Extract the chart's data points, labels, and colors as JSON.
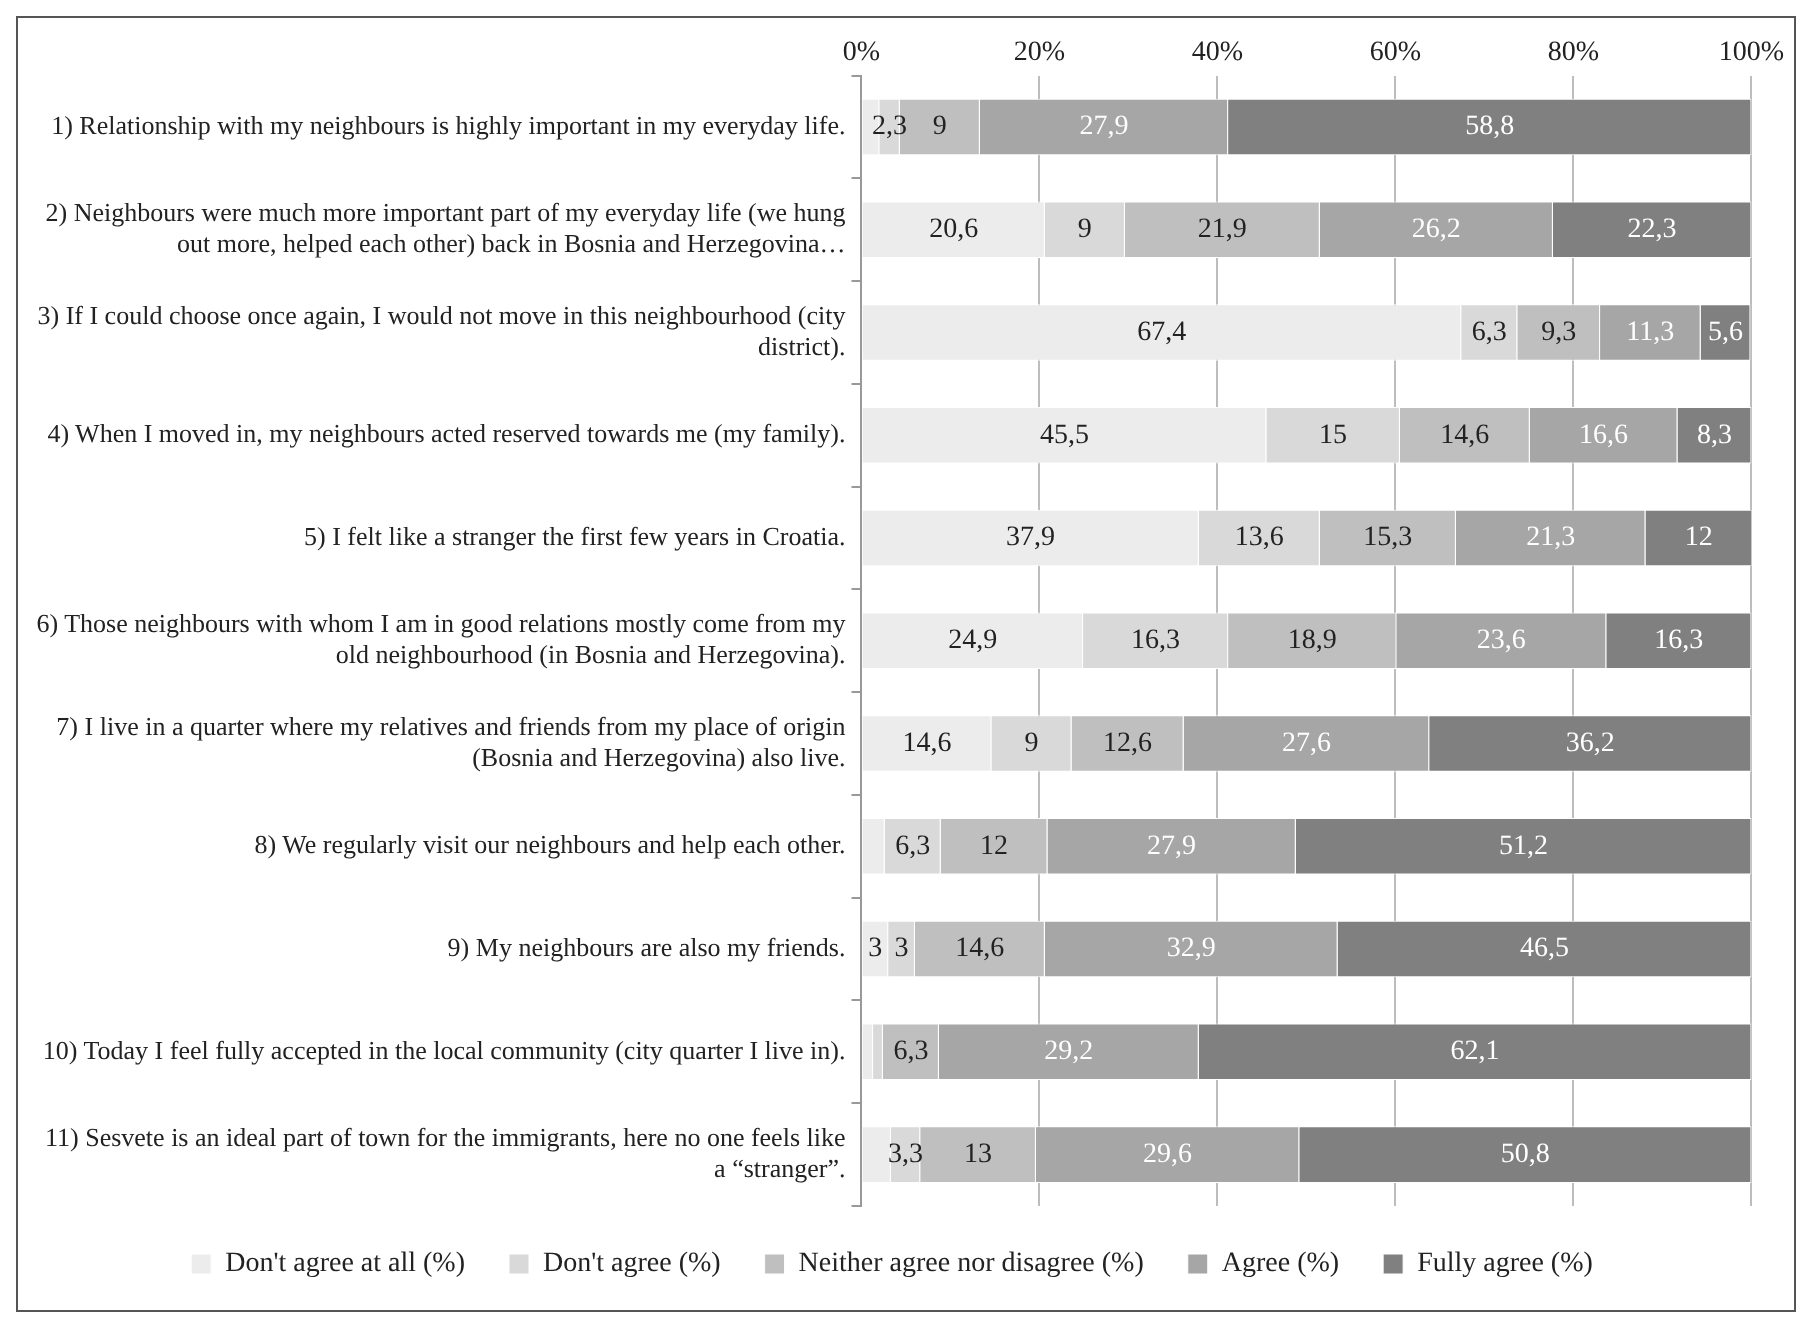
{
  "chart_data": {
    "type": "bar",
    "orientation": "horizontal",
    "stacked": true,
    "categories": [
      "1) Relationship with my neighbours is highly important in my everyday life.",
      "2) Neighbours were much more important part of my everyday life (we hung out more, helped each other) back in Bosnia and Herzegovina…",
      "3) If I could choose once again, I would not move in this neighbourhood (city district).",
      "4) When I moved in, my neighbours acted reserved towards me (my family).",
      "5) I felt like a stranger the first few years in Croatia.",
      "6) Those neighbours with whom I am in good relations mostly come from my old neighbourhood (in Bosnia and Herzegovina).",
      "7) I live in a quarter where my relatives and friends from my place of origin (Bosnia and Herzegovina) also live.",
      "8) We regularly visit our neighbours and help each other.",
      "9) My neighbours are also my friends.",
      "10) Today I feel fully accepted in the local community (city quarter I live in).",
      "11) Sesvete is an ideal part of town for the immigrants, here no one feels like a “stranger”."
    ],
    "series": [
      {
        "name": "Don't agree at all (%)",
        "color": "#ececec",
        "values": [
          2,
          20.6,
          67.4,
          45.5,
          37.9,
          24.9,
          14.6,
          2.6,
          3,
          1.3,
          3.3
        ],
        "value_labels": [
          null,
          "20,6",
          "67,4",
          "45,5",
          "37,9",
          "24,9",
          "14,6",
          null,
          "3",
          null,
          null
        ]
      },
      {
        "name": "Don't agree (%)",
        "color": "#d9d9d9",
        "values": [
          2.3,
          9,
          6.3,
          15,
          13.6,
          16.3,
          9,
          6.3,
          3,
          1.1,
          3.3
        ],
        "value_labels": [
          "2,3",
          "9",
          "6,3",
          "15",
          "13,6",
          "16,3",
          "9",
          "6,3",
          "3",
          null,
          "3,3"
        ]
      },
      {
        "name": "Neither agree nor disagree (%)",
        "color": "#bfbfbf",
        "values": [
          9,
          21.9,
          9.3,
          14.6,
          15.3,
          18.9,
          12.6,
          12,
          14.6,
          6.3,
          13
        ],
        "value_labels": [
          "9",
          "21,9",
          "9,3",
          "14,6",
          "15,3",
          "18,9",
          "12,6",
          "12",
          "14,6",
          "6,3",
          "13"
        ]
      },
      {
        "name": "Agree (%)",
        "color": "#a6a6a6",
        "values": [
          27.9,
          26.2,
          11.3,
          16.6,
          21.3,
          23.6,
          27.6,
          27.9,
          32.9,
          29.2,
          29.6
        ],
        "value_labels": [
          "27,9",
          "26,2",
          "11,3",
          "16,6",
          "21,3",
          "23,6",
          "27,6",
          "27,9",
          "32,9",
          "29,2",
          "29,6"
        ]
      },
      {
        "name": "Fully agree (%)",
        "color": "#808080",
        "values": [
          58.8,
          22.3,
          5.6,
          8.3,
          12,
          16.3,
          36.2,
          51.2,
          46.5,
          62.1,
          50.8
        ],
        "value_labels": [
          "58,8",
          "22,3",
          "5,6",
          "8,3",
          "12",
          "16,3",
          "36,2",
          "51,2",
          "46,5",
          "62,1",
          "50,8"
        ]
      }
    ],
    "xlim": [
      0,
      100
    ],
    "xticks": [
      {
        "value": 0,
        "label": "0%"
      },
      {
        "value": 20,
        "label": "20%"
      },
      {
        "value": 40,
        "label": "40%"
      },
      {
        "value": 60,
        "label": "60%"
      },
      {
        "value": 80,
        "label": "80%"
      },
      {
        "value": 100,
        "label": "100%"
      }
    ],
    "grid": "x",
    "legend": "bottom"
  }
}
